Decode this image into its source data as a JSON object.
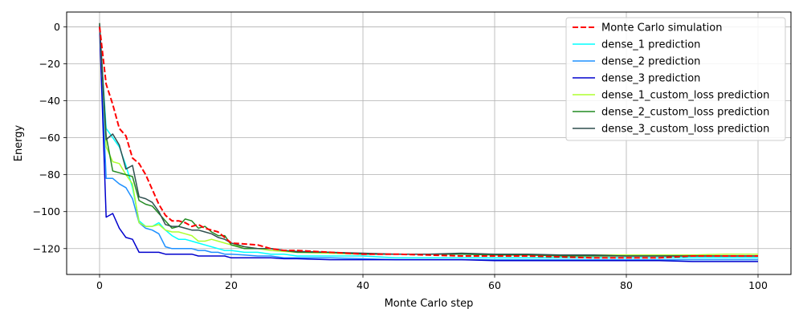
{
  "chart_data": {
    "type": "line",
    "xlabel": "Monte Carlo step",
    "ylabel": "Energy",
    "xlim": [
      -5,
      105
    ],
    "ylim": [
      -134,
      8
    ],
    "xticks": [
      0,
      20,
      40,
      60,
      80,
      100
    ],
    "yticks": [
      0,
      -20,
      -40,
      -60,
      -80,
      -100,
      -120
    ],
    "grid": true,
    "legend_position": "top-right",
    "series": [
      {
        "name": "Monte Carlo simulation",
        "color": "#ff0000",
        "dash": "dashed",
        "x": [
          0,
          1,
          2,
          3,
          4,
          5,
          6,
          7,
          8,
          9,
          10,
          11,
          12,
          13,
          14,
          15,
          16,
          17,
          18,
          19,
          20,
          22,
          24,
          26,
          28,
          30,
          35,
          40,
          45,
          50,
          55,
          60,
          65,
          70,
          75,
          80,
          85,
          90,
          95,
          100
        ],
        "y": [
          0,
          -31,
          -42,
          -55,
          -59,
          -71,
          -74,
          -80,
          -88,
          -96,
          -102,
          -105,
          -105,
          -106,
          -108,
          -107,
          -109,
          -110,
          -111,
          -114,
          -117,
          -117.5,
          -118,
          -120,
          -121,
          -121,
          -122,
          -123,
          -123,
          -123.5,
          -124,
          -124,
          -124,
          -124.5,
          -125,
          -125,
          -125,
          -124,
          -124,
          -124
        ]
      },
      {
        "name": "dense_1 prediction",
        "color": "#00ffff",
        "dash": "solid",
        "x": [
          0,
          1,
          2,
          3,
          4,
          5,
          6,
          7,
          8,
          9,
          10,
          11,
          12,
          13,
          14,
          15,
          16,
          17,
          18,
          19,
          20,
          22,
          24,
          26,
          28,
          30,
          35,
          40,
          45,
          50,
          55,
          60,
          65,
          70,
          75,
          80,
          85,
          90,
          95,
          100
        ],
        "y": [
          0,
          -55,
          -60,
          -65,
          -75,
          -87,
          -105,
          -108,
          -108,
          -106,
          -110,
          -113,
          -115,
          -115,
          -116,
          -117,
          -118,
          -119,
          -120,
          -121,
          -121,
          -122,
          -122,
          -123,
          -123,
          -124,
          -124,
          -124,
          -125,
          -125,
          -125,
          -125,
          -125,
          -125,
          -125,
          -125,
          -125,
          -125,
          -125,
          -125
        ]
      },
      {
        "name": "dense_2 prediction",
        "color": "#1e90ff",
        "dash": "solid",
        "x": [
          0,
          1,
          2,
          3,
          4,
          5,
          6,
          7,
          8,
          9,
          10,
          11,
          12,
          13,
          14,
          15,
          16,
          17,
          18,
          19,
          20,
          22,
          24,
          26,
          28,
          30,
          35,
          40,
          45,
          50,
          55,
          60,
          65,
          70,
          75,
          80,
          85,
          90,
          95,
          100
        ],
        "y": [
          0,
          -82,
          -82,
          -85,
          -87,
          -93,
          -106,
          -109,
          -110,
          -112,
          -119,
          -120,
          -120,
          -120,
          -120,
          -121,
          -121,
          -122,
          -122,
          -123,
          -123,
          -123.5,
          -124,
          -124,
          -125,
          -125,
          -125,
          -125.5,
          -126,
          -126,
          -126,
          -126,
          -126,
          -126,
          -126,
          -126,
          -126,
          -126,
          -126,
          -126
        ]
      },
      {
        "name": "dense_3 prediction",
        "color": "#0000cd",
        "dash": "solid",
        "x": [
          0,
          1,
          2,
          3,
          4,
          5,
          6,
          7,
          8,
          9,
          10,
          11,
          12,
          13,
          14,
          15,
          16,
          17,
          18,
          19,
          20,
          22,
          24,
          26,
          28,
          30,
          35,
          40,
          45,
          50,
          55,
          60,
          65,
          70,
          75,
          80,
          85,
          90,
          95,
          100
        ],
        "y": [
          0,
          -103,
          -101,
          -109,
          -114,
          -115,
          -122,
          -122,
          -122,
          -122,
          -123,
          -123,
          -123,
          -123,
          -123,
          -124,
          -124,
          -124,
          -124,
          -124,
          -125,
          -125,
          -125,
          -125,
          -125.5,
          -125.5,
          -126,
          -126,
          -126,
          -126,
          -126,
          -126.5,
          -126.5,
          -126.5,
          -126.5,
          -126.5,
          -126.5,
          -127,
          -127,
          -127
        ]
      },
      {
        "name": "dense_1_custom_loss prediction",
        "color": "#adff2f",
        "dash": "solid",
        "x": [
          0,
          1,
          2,
          3,
          4,
          5,
          6,
          7,
          8,
          9,
          10,
          11,
          12,
          13,
          14,
          15,
          16,
          17,
          18,
          19,
          20,
          22,
          24,
          26,
          28,
          30,
          35,
          40,
          45,
          50,
          55,
          60,
          65,
          70,
          75,
          80,
          85,
          90,
          95,
          100
        ],
        "y": [
          2,
          -65,
          -73,
          -74,
          -80,
          -85,
          -106,
          -108,
          -108,
          -107,
          -110,
          -111,
          -111,
          -112,
          -113,
          -116,
          -116,
          -115,
          -116,
          -117,
          -118,
          -119,
          -120,
          -121,
          -121.5,
          -122,
          -122.5,
          -123,
          -123,
          -123,
          -123,
          -123,
          -123.5,
          -123.5,
          -123.5,
          -123.5,
          -123.5,
          -123.5,
          -123,
          -123
        ]
      },
      {
        "name": "dense_2_custom_loss prediction",
        "color": "#228b22",
        "dash": "solid",
        "x": [
          0,
          1,
          2,
          3,
          4,
          5,
          6,
          7,
          8,
          9,
          10,
          11,
          12,
          13,
          14,
          15,
          16,
          17,
          18,
          19,
          20,
          22,
          24,
          26,
          28,
          30,
          35,
          40,
          45,
          50,
          55,
          60,
          65,
          70,
          75,
          80,
          85,
          90,
          95,
          100
        ],
        "y": [
          1,
          -59,
          -78,
          -79,
          -80,
          -81,
          -94,
          -96,
          -97,
          -101,
          -105,
          -109,
          -108,
          -104,
          -105,
          -109,
          -108,
          -111,
          -113,
          -113,
          -118,
          -120,
          -120,
          -120,
          -121,
          -122,
          -122,
          -123,
          -123,
          -123,
          -123,
          -123.5,
          -123.5,
          -124,
          -124,
          -124,
          -124,
          -124,
          -124,
          -124
        ]
      },
      {
        "name": "dense_3_custom_loss prediction",
        "color": "#2f4f4f",
        "dash": "solid",
        "x": [
          0,
          1,
          2,
          3,
          4,
          5,
          6,
          7,
          8,
          9,
          10,
          11,
          12,
          13,
          14,
          15,
          16,
          17,
          18,
          19,
          20,
          22,
          24,
          26,
          28,
          30,
          35,
          40,
          45,
          50,
          55,
          60,
          65,
          70,
          75,
          80,
          85,
          90,
          95,
          100
        ],
        "y": [
          2,
          -61,
          -58,
          -64,
          -77,
          -75,
          -92,
          -93,
          -95,
          -100,
          -107,
          -108,
          -108,
          -109,
          -110,
          -110,
          -111,
          -112,
          -114,
          -115,
          -117,
          -119,
          -120,
          -120,
          -121,
          -121.5,
          -122,
          -122.5,
          -123,
          -123,
          -122.5,
          -123,
          -123,
          -123.5,
          -123.5,
          -124,
          -124,
          -124,
          -124,
          -124
        ]
      }
    ]
  }
}
